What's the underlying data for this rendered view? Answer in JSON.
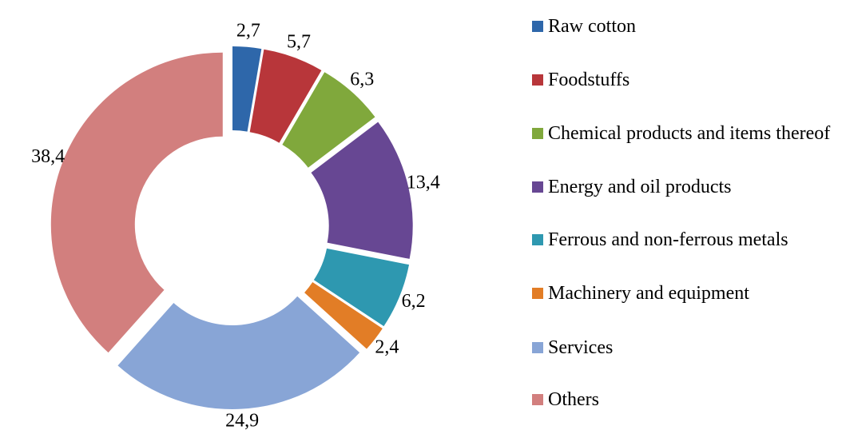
{
  "chart_data": {
    "type": "pie",
    "donut": true,
    "categories": [
      "Raw cotton",
      "Foodstuffs",
      "Chemical products and items thereof",
      "Energy and oil products",
      "Ferrous and non-ferrous metals",
      "Machinery and equipment",
      "Services",
      "Others"
    ],
    "values": [
      2.7,
      5.7,
      6.3,
      13.4,
      6.2,
      2.4,
      24.9,
      38.4
    ],
    "value_labels": [
      "2,7",
      "5,7",
      "6,3",
      "13,4",
      "6,2",
      "2,4",
      "24,9",
      "38,4"
    ],
    "colors": [
      "#2e67aa",
      "#b8363a",
      "#80a83c",
      "#674793",
      "#2e98b0",
      "#e27d26",
      "#88a5d6",
      "#d27f7e"
    ],
    "legend": "right"
  }
}
